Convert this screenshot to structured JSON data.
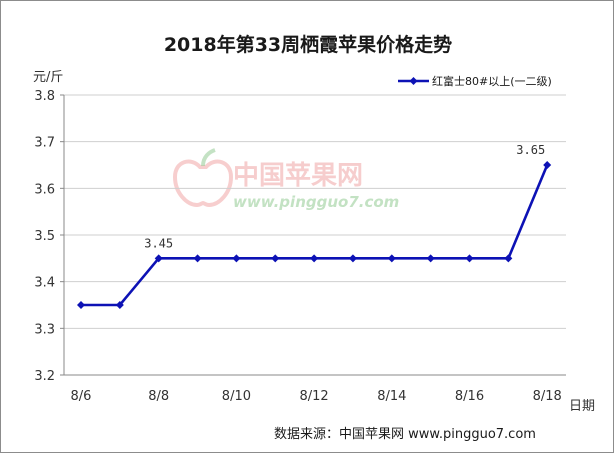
{
  "chart_data": {
    "type": "line",
    "title": "2018年第33周栖霞苹果价格走势",
    "ylabel": "元/斤",
    "xlabel": "日期",
    "ylim": [
      3.2,
      3.8
    ],
    "y_ticks": [
      "3.2",
      "3.3",
      "3.4",
      "3.5",
      "3.6",
      "3.7",
      "3.8"
    ],
    "x_tick_labels": [
      "8/6",
      "8/8",
      "8/10",
      "8/12",
      "8/14",
      "8/16",
      "8/18"
    ],
    "x": [
      "8/6",
      "8/7",
      "8/8",
      "8/9",
      "8/10",
      "8/11",
      "8/12",
      "8/13",
      "8/14",
      "8/15",
      "8/16",
      "8/17",
      "8/18"
    ],
    "series": [
      {
        "name": "红富士80#以上(一二级)",
        "color": "#0d12b5",
        "values": [
          3.35,
          3.35,
          3.45,
          3.45,
          3.45,
          3.45,
          3.45,
          3.45,
          3.45,
          3.45,
          3.45,
          3.45,
          3.65
        ]
      }
    ],
    "data_labels": [
      {
        "x": "8/8",
        "text": "3.45"
      },
      {
        "x": "8/18",
        "text": "3.65"
      }
    ],
    "grid": "horizontal",
    "legend_position": "top-right",
    "source": "数据来源：中国苹果网 www.pingguo7.com",
    "watermark": {
      "name": "中国苹果网",
      "url": "www.pingguo7.com"
    }
  }
}
